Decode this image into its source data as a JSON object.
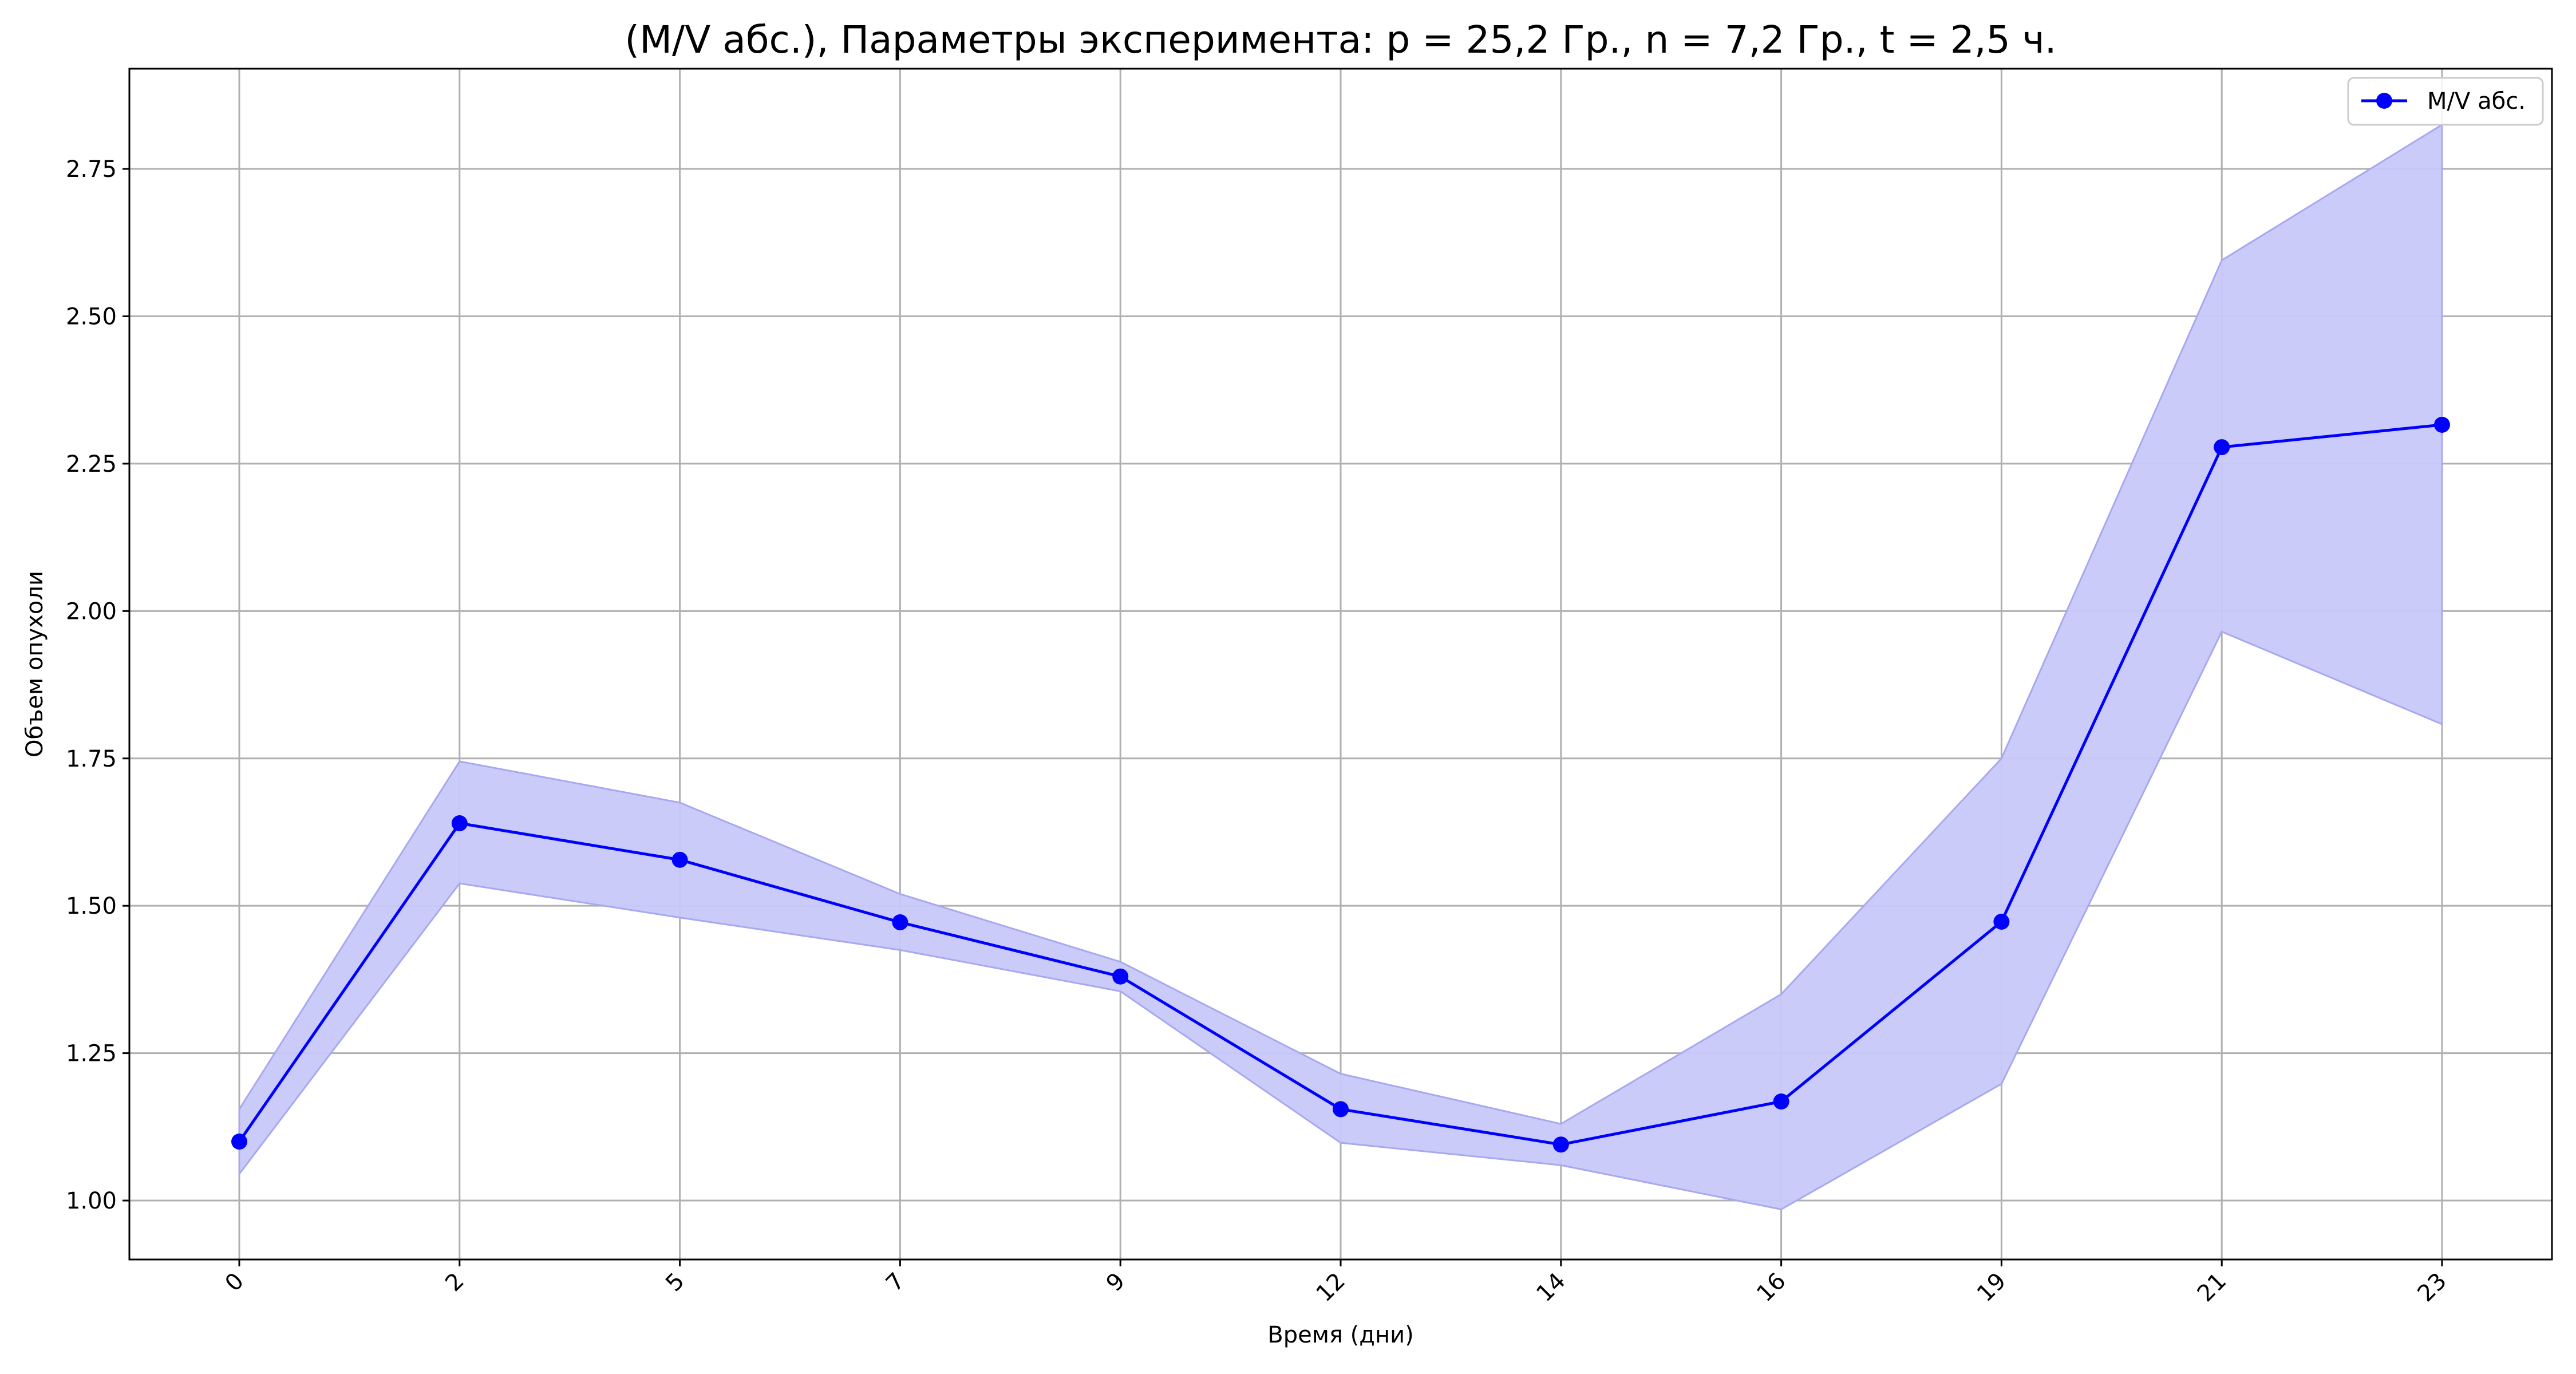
{
  "chart_data": {
    "type": "line",
    "title": "(M/V абс.), Параметры эксперимента: p = 25,2 Гр., n = 7,2 Гр., t = 2,5 ч.",
    "xlabel": "Время (дни)",
    "ylabel": "Объем опухоли",
    "categories": [
      "0",
      "2",
      "5",
      "7",
      "9",
      "12",
      "14",
      "16",
      "19",
      "21",
      "23"
    ],
    "series": [
      {
        "name": "M/V абс.",
        "color": "#0000ff",
        "values": [
          1.1,
          1.64,
          1.578,
          1.472,
          1.38,
          1.155,
          1.095,
          1.168,
          1.473,
          2.278,
          2.316
        ],
        "band_upper": [
          1.155,
          1.745,
          1.675,
          1.52,
          1.405,
          1.215,
          1.13,
          1.35,
          1.75,
          2.595,
          2.825
        ],
        "band_lower": [
          1.045,
          1.538,
          1.48,
          1.425,
          1.355,
          1.098,
          1.06,
          0.985,
          1.198,
          1.965,
          1.808
        ],
        "band_color": "#c8c8fa"
      }
    ],
    "yticks": [
      "1.00",
      "1.25",
      "1.50",
      "1.75",
      "2.00",
      "2.25",
      "2.50",
      "2.75"
    ],
    "ylim": [
      0.9,
      2.92
    ],
    "grid": true,
    "legend_position": "upper right"
  }
}
